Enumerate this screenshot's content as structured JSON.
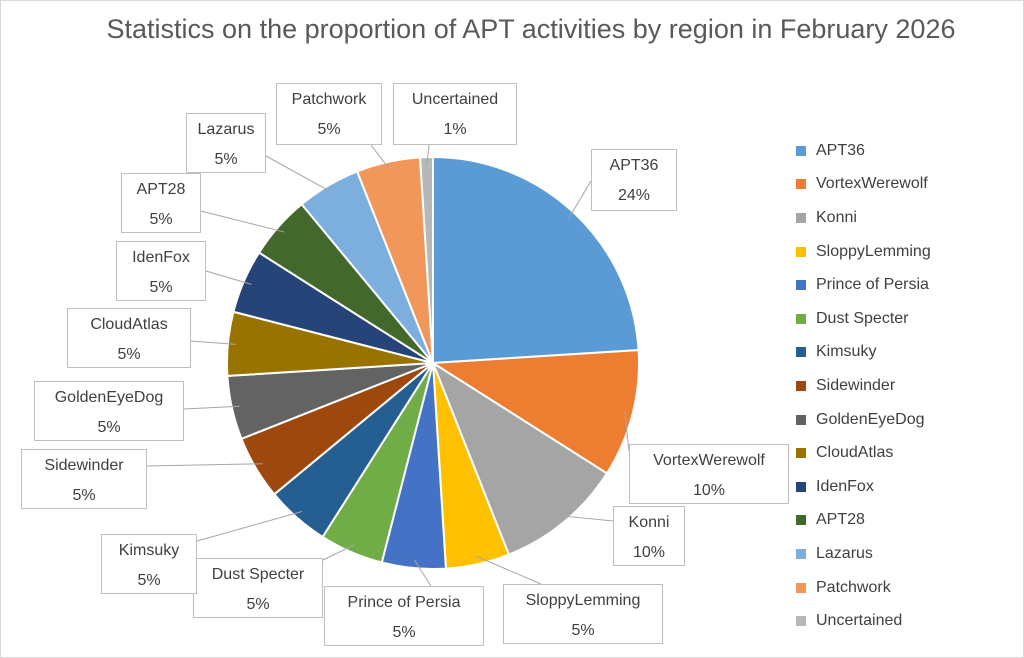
{
  "chart_data": {
    "type": "pie",
    "title": "Statistics on the proportion of APT activities by region in February 2026",
    "categories": [
      "APT36",
      "VortexWerewolf",
      "Konni",
      "SloppyLemming",
      "Prince of Persia",
      "Dust Specter",
      "Kimsuky",
      "Sidewinder",
      "GoldenEyeDog",
      "CloudAtlas",
      "IdenFox",
      "APT28",
      "Lazarus",
      "Patchwork",
      "Uncertained"
    ],
    "values": [
      24,
      10,
      10,
      5,
      5,
      5,
      5,
      5,
      5,
      5,
      5,
      5,
      5,
      5,
      1
    ],
    "labels": [
      "24%",
      "10%",
      "10%",
      "5%",
      "5%",
      "5%",
      "5%",
      "5%",
      "5%",
      "5%",
      "5%",
      "5%",
      "5%",
      "5%",
      "1%"
    ],
    "colors": [
      "#5B9BD5",
      "#ED7D31",
      "#A5A5A5",
      "#FFC000",
      "#4472C4",
      "#70AD47",
      "#255E91",
      "#9E480E",
      "#636363",
      "#997300",
      "#264478",
      "#43682B",
      "#7CAFDD",
      "#F1975A",
      "#B7B7B7"
    ],
    "legend_position": "right",
    "start": "top, clockwise"
  }
}
